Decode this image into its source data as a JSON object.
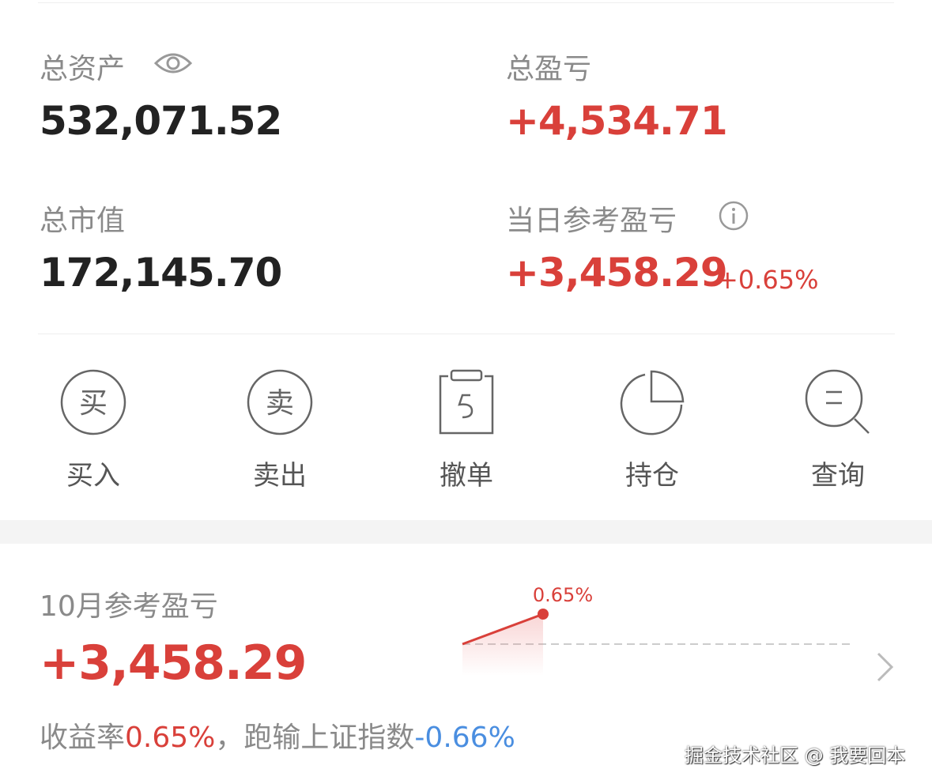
{
  "summary": {
    "total_assets_label": "总资产",
    "total_assets_value": "532,071.52",
    "total_pnl_label": "总盈亏",
    "total_pnl_value": "+4,534.71",
    "market_value_label": "总市值",
    "market_value_value": "172,145.70",
    "daily_pnl_label": "当日参考盈亏",
    "daily_pnl_value": "+3,458.29",
    "daily_pnl_pct": "+0.65%"
  },
  "actions": [
    {
      "label": "买入",
      "icon": "buy-icon",
      "glyph": "买"
    },
    {
      "label": "卖出",
      "icon": "sell-icon",
      "glyph": "卖"
    },
    {
      "label": "撤单",
      "icon": "cancel-order-icon"
    },
    {
      "label": "持仓",
      "icon": "pie-chart-icon"
    },
    {
      "label": "查询",
      "icon": "search-icon"
    }
  ],
  "monthly": {
    "label": "10月参考盈亏",
    "value": "+3,458.29",
    "rate_label": "收益率",
    "rate_value": "0.65%",
    "separator": "，",
    "bench_label": "跑输上证指数",
    "bench_value": "-0.66%"
  },
  "chart_data": {
    "type": "area",
    "values": [
      0,
      0.65
    ],
    "point_label": "0.65%",
    "baseline": 0
  },
  "watermark": "掘金技术社区 @ 我要回本",
  "colors": {
    "up": "#d9403a",
    "down": "#4a8ee0",
    "text": "#222222",
    "muted": "#8a8a8a"
  }
}
